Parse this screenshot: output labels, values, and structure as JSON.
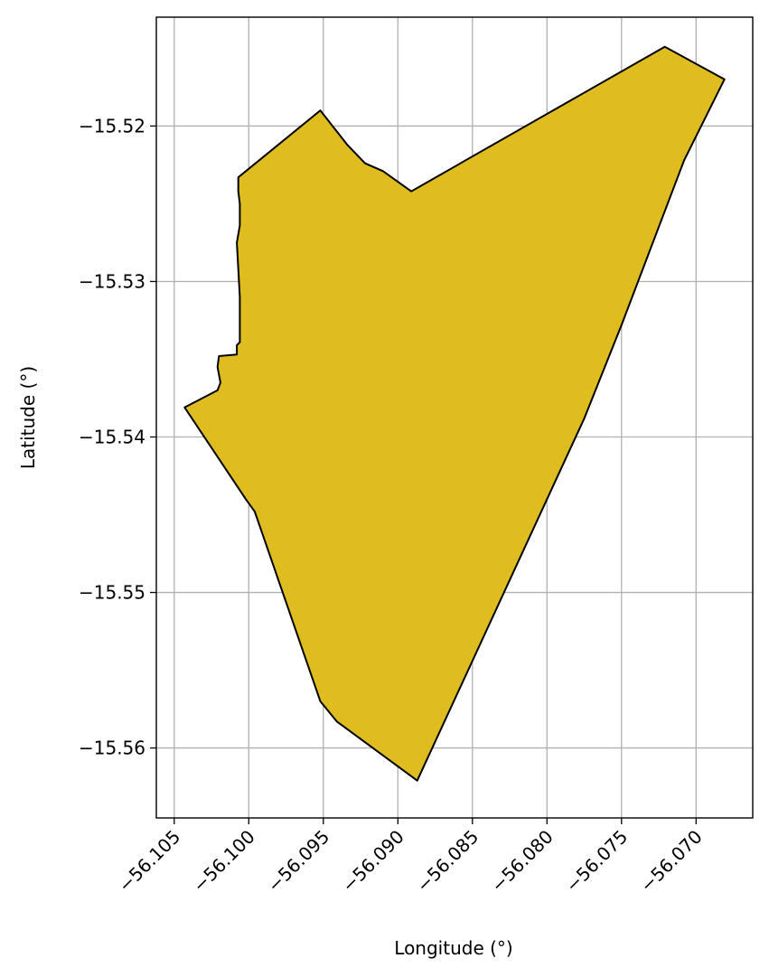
{
  "chart_data": {
    "type": "map",
    "xlabel": "Longitude (°)",
    "ylabel": "Latitude (°)",
    "xlim": [
      -56.1062,
      -56.0662
    ],
    "ylim": [
      -15.5645,
      -15.513
    ],
    "grid": true,
    "xticks": [
      {
        "value": -56.105,
        "label": "−56.105"
      },
      {
        "value": -56.1,
        "label": "−56.100"
      },
      {
        "value": -56.095,
        "label": "−56.095"
      },
      {
        "value": -56.09,
        "label": "−56.090"
      },
      {
        "value": -56.085,
        "label": "−56.085"
      },
      {
        "value": -56.08,
        "label": "−56.080"
      },
      {
        "value": -56.075,
        "label": "−56.075"
      },
      {
        "value": -56.07,
        "label": "−56.070"
      }
    ],
    "yticks": [
      {
        "value": -15.52,
        "label": "−15.52"
      },
      {
        "value": -15.53,
        "label": "−15.53"
      },
      {
        "value": -15.54,
        "label": "−15.54"
      },
      {
        "value": -15.55,
        "label": "−15.55"
      },
      {
        "value": -15.56,
        "label": "−15.56"
      }
    ],
    "fill_color": "#dfbd21",
    "edge_color": "#000000",
    "grid_color": "#b0b0b0",
    "polygon": [
      [
        -56.1007,
        -15.5233
      ],
      [
        -56.0952,
        -15.519
      ],
      [
        -56.0934,
        -15.5212
      ],
      [
        -56.0922,
        -15.5224
      ],
      [
        -56.091,
        -15.5229
      ],
      [
        -56.0891,
        -15.5242
      ],
      [
        -56.0721,
        -15.5149
      ],
      [
        -56.0681,
        -15.517
      ],
      [
        -56.0708,
        -15.5222
      ],
      [
        -56.075,
        -15.5328
      ],
      [
        -56.0775,
        -15.5388
      ],
      [
        -56.0887,
        -15.5621
      ],
      [
        -56.0941,
        -15.5583
      ],
      [
        -56.0952,
        -15.557
      ],
      [
        -56.0996,
        -15.5448
      ],
      [
        -56.1002,
        -15.544
      ],
      [
        -56.1043,
        -15.5381
      ],
      [
        -56.1021,
        -15.537
      ],
      [
        -56.1019,
        -15.5365
      ],
      [
        -56.1021,
        -15.5355
      ],
      [
        -56.102,
        -15.5348
      ],
      [
        -56.1008,
        -15.5347
      ],
      [
        -56.1008,
        -15.5341
      ],
      [
        -56.1006,
        -15.5339
      ],
      [
        -56.1006,
        -15.5327
      ],
      [
        -56.1006,
        -15.531
      ],
      [
        -56.1007,
        -15.5292
      ],
      [
        -56.1008,
        -15.5275
      ],
      [
        -56.1006,
        -15.5264
      ],
      [
        -56.1006,
        -15.525
      ],
      [
        -56.1007,
        -15.5242
      ],
      [
        -56.1007,
        -15.5233
      ]
    ]
  }
}
